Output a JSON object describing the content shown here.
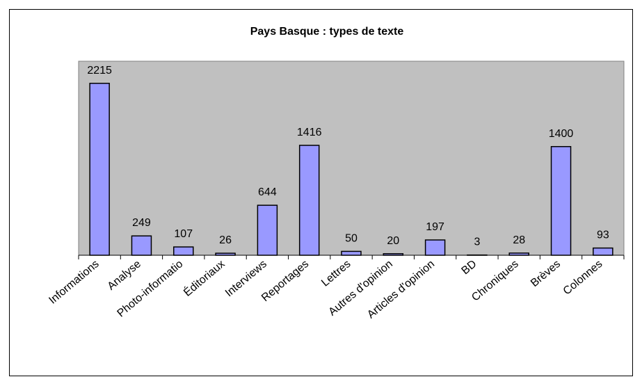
{
  "chart_data": {
    "type": "bar",
    "title": "Pays Basque : types de texte",
    "categories": [
      "Informations",
      "Analyse",
      "Photo-informatio",
      "Éditoriaux",
      "Interviews",
      "Reportages",
      "Lettres",
      "Autres d'opinion",
      "Articles d'opinion",
      "BD",
      "Chroniques",
      "Brèves",
      "Colonnes"
    ],
    "values": [
      2215,
      249,
      107,
      26,
      644,
      1416,
      50,
      20,
      197,
      3,
      28,
      1400,
      93
    ],
    "color": "#9999ff",
    "ylim": [
      0,
      2500
    ]
  }
}
